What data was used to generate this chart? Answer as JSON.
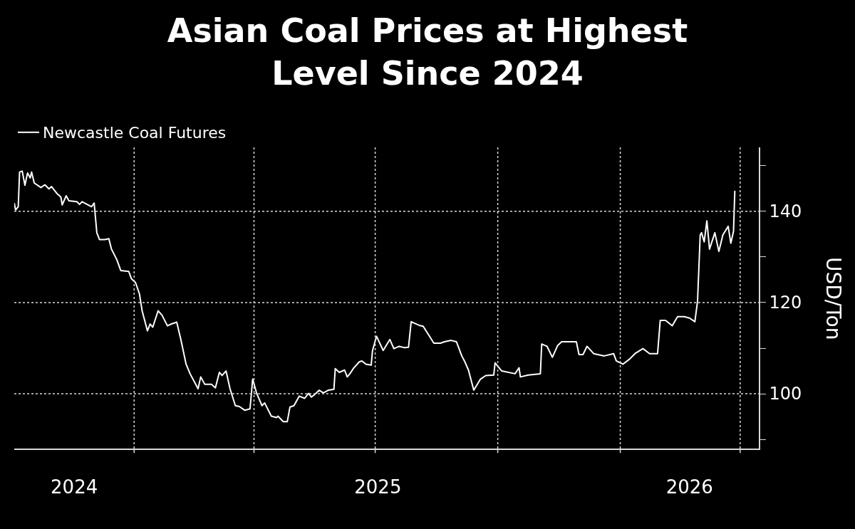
{
  "chart_data": {
    "type": "line",
    "title": "Asian Coal Prices at Highest Level Since 2024",
    "ylabel": "USD/Ton",
    "series": [
      {
        "name": "Newcastle Coal Futures",
        "color": "#ffffff",
        "x": [
          "2024-10-03",
          "2024-10-04",
          "2024-10-06",
          "2024-10-07",
          "2024-10-09",
          "2024-10-11",
          "2024-10-13",
          "2024-10-15",
          "2024-10-16",
          "2024-10-18",
          "2024-10-23",
          "2024-10-26",
          "2024-10-29",
          "2024-10-31",
          "2024-11-04",
          "2024-11-07",
          "2024-11-08",
          "2024-11-11",
          "2024-11-13",
          "2024-11-19",
          "2024-11-21",
          "2024-11-23",
          "2024-11-30",
          "2024-12-02",
          "2024-12-04",
          "2024-12-06",
          "2024-12-10",
          "2024-12-13",
          "2024-12-15",
          "2024-12-19",
          "2024-12-22",
          "2024-12-28",
          "2024-12-30",
          "2025-01-02",
          "2025-01-05",
          "2025-01-07",
          "2025-01-11",
          "2025-01-13",
          "2025-01-15",
          "2025-01-19",
          "2025-01-22",
          "2025-01-26",
          "2025-01-29",
          "2025-02-02",
          "2025-02-05",
          "2025-02-09",
          "2025-02-12",
          "2025-02-18",
          "2025-02-20",
          "2025-02-23",
          "2025-02-28",
          "2025-03-03",
          "2025-03-06",
          "2025-03-08",
          "2025-03-11",
          "2025-03-14",
          "2025-03-18",
          "2025-03-21",
          "2025-03-25",
          "2025-03-29",
          "2025-03-31",
          "2025-04-03",
          "2025-04-07",
          "2025-04-09",
          "2025-04-14",
          "2025-04-18",
          "2025-04-19",
          "2025-04-23",
          "2025-04-26",
          "2025-04-28",
          "2025-05-01",
          "2025-05-05",
          "2025-05-09",
          "2025-05-12",
          "2025-05-14",
          "2025-05-16",
          "2025-05-20",
          "2025-05-23",
          "2025-05-27",
          "2025-05-31",
          "2025-06-01",
          "2025-06-04",
          "2025-06-08",
          "2025-06-10",
          "2025-06-12",
          "2025-06-15",
          "2025-06-19",
          "2025-06-21",
          "2025-06-24",
          "2025-06-28",
          "2025-06-29",
          "2025-07-02",
          "2025-07-07",
          "2025-07-12",
          "2025-07-15",
          "2025-07-19",
          "2025-07-23",
          "2025-07-26",
          "2025-07-28",
          "2025-08-03",
          "2025-08-06",
          "2025-08-11",
          "2025-08-14",
          "2025-08-19",
          "2025-08-22",
          "2025-08-27",
          "2025-08-31",
          "2025-09-04",
          "2025-09-06",
          "2025-09-09",
          "2025-09-13",
          "2025-09-18",
          "2025-09-22",
          "2025-09-28",
          "2025-09-29",
          "2025-10-02",
          "2025-10-04",
          "2025-10-14",
          "2025-10-17",
          "2025-10-18",
          "2025-10-24",
          "2025-11-02",
          "2025-11-03",
          "2025-11-07",
          "2025-11-11",
          "2025-11-15",
          "2025-11-18",
          "2025-11-29",
          "2025-12-01",
          "2025-12-04",
          "2025-12-07",
          "2025-12-12",
          "2025-12-20",
          "2025-12-27",
          "2025-12-29",
          "2026-01-03",
          "2026-01-08",
          "2026-01-12",
          "2026-01-18",
          "2026-01-23",
          "2026-01-29",
          "2026-01-31",
          "2026-02-04",
          "2026-02-09",
          "2026-02-13",
          "2026-02-18",
          "2026-02-22",
          "2026-02-26",
          "2026-02-28",
          "2026-03-02",
          "2026-03-03",
          "2026-03-05",
          "2026-03-07",
          "2026-03-09",
          "2026-03-13",
          "2026-03-16",
          "2026-03-19",
          "2026-03-23",
          "2026-03-25",
          "2026-03-27",
          "2026-03-28"
        ],
        "values": [
          141.8,
          140.3,
          141,
          148.6,
          148.8,
          145.7,
          148.4,
          147.3,
          148.6,
          146.2,
          145.2,
          145.8,
          144.9,
          145.4,
          143.9,
          143.1,
          141.4,
          143.4,
          142.3,
          142.1,
          141.5,
          142.1,
          141,
          141.8,
          135.3,
          133.8,
          133.8,
          134,
          131.7,
          129.4,
          127,
          126.8,
          125.2,
          124.4,
          121.9,
          118.2,
          113.8,
          115.3,
          114.6,
          118.2,
          117.2,
          114.9,
          115.3,
          115.7,
          112,
          106.5,
          104.4,
          101.1,
          103.7,
          102.1,
          102.1,
          101.3,
          104.7,
          104,
          105,
          101.1,
          97.4,
          97.2,
          96.4,
          96.7,
          103.2,
          100.1,
          97.4,
          98,
          95.1,
          94.8,
          95.1,
          93.9,
          93.9,
          97.1,
          97.4,
          99.5,
          99,
          100.1,
          99.3,
          99.7,
          100.8,
          100.2,
          100.8,
          101,
          105.5,
          104.7,
          105.2,
          103.7,
          104.4,
          105.7,
          107,
          107.2,
          106.5,
          106.3,
          109.5,
          112.6,
          109.5,
          111.9,
          109.9,
          110.4,
          110.1,
          110.2,
          115.8,
          115,
          114.8,
          112.5,
          111.1,
          111.1,
          111.4,
          111.7,
          111.4,
          108.3,
          107.2,
          105.2,
          100.8,
          103.2,
          104,
          104.1,
          106.8,
          105.7,
          105,
          104.4,
          105.7,
          103.7,
          104.1,
          104.4,
          110.9,
          110.4,
          108,
          110.6,
          111.4,
          111.4,
          108.6,
          108.6,
          110.4,
          108.8,
          108.3,
          108.8,
          107.2,
          106.5,
          107.6,
          108.8,
          109.9,
          108.8,
          108.8,
          116.1,
          116.1,
          114.9,
          116.9,
          116.9,
          116.6,
          115.8,
          120.3,
          134.8,
          135.3,
          133.3,
          137.9,
          131.7,
          135.3,
          131.2,
          134.8,
          136.7,
          133,
          135.6,
          144.5
        ]
      }
    ],
    "xlim": [
      "2024-10-03",
      "2026-04-15"
    ],
    "xticks": [
      {
        "value": "2024-11-17",
        "label": "2024"
      },
      {
        "value": "2025-01-01",
        "label": null
      },
      {
        "value": "2025-04-01",
        "label": null
      },
      {
        "value": "2025-07-03",
        "label": "2025"
      },
      {
        "value": "2025-07-01",
        "label": null
      },
      {
        "value": "2025-10-01",
        "label": null
      },
      {
        "value": "2026-01-01",
        "label": null
      },
      {
        "value": "2026-02-22",
        "label": "2026"
      },
      {
        "value": "2026-04-01",
        "label": null
      }
    ],
    "ylim": [
      88,
      154
    ],
    "yticks": [
      {
        "value": 90,
        "label": null
      },
      100,
      {
        "value": 110,
        "label": null
      },
      120,
      {
        "value": 130,
        "label": null
      },
      140,
      {
        "value": 150,
        "label": null
      }
    ],
    "grid": true,
    "legend": "top left",
    "line_style": "solid",
    "marker": "none"
  }
}
